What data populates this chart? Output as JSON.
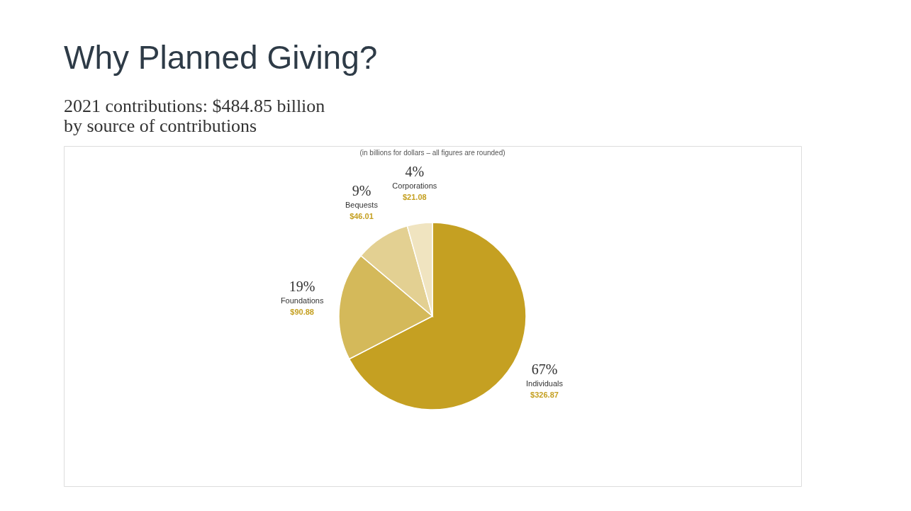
{
  "chart_data": {
    "type": "pie",
    "title": "Why Planned Giving?",
    "subtitle": [
      "2021 contributions: $484.85 billion",
      "by source of contributions"
    ],
    "categories": [
      "Individuals",
      "Foundations",
      "Bequests",
      "Corporations"
    ],
    "values": [
      326.87,
      90.88,
      46.01,
      21.08
    ],
    "colors": [
      "#c5a022",
      "#d4b95a",
      "#e3d092",
      "#f0e4c0"
    ],
    "value_labels": [
      "$326.87",
      "$90.88",
      "$46.01",
      "$21.08"
    ],
    "annotations": [
      "(in billions for dollars – all figures are rounded)",
      "67%",
      "19%",
      "9%",
      "4%"
    ],
    "legend": false
  }
}
